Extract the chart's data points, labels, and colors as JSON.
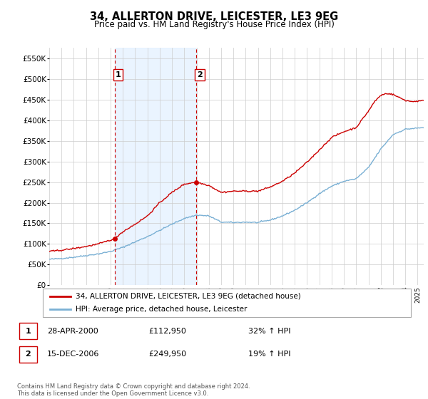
{
  "title": "34, ALLERTON DRIVE, LEICESTER, LE3 9EG",
  "subtitle": "Price paid vs. HM Land Registry's House Price Index (HPI)",
  "hpi_color": "#7ab0d4",
  "price_color": "#cc0000",
  "annotation_color": "#cc0000",
  "vline_color": "#cc0000",
  "bg_shading_color": "#ddeeff",
  "grid_color": "#cccccc",
  "ylim": [
    0,
    575000
  ],
  "yticks": [
    0,
    50000,
    100000,
    150000,
    200000,
    250000,
    300000,
    350000,
    400000,
    450000,
    500000,
    550000
  ],
  "ytick_labels": [
    "£0",
    "£50K",
    "£100K",
    "£150K",
    "£200K",
    "£250K",
    "£300K",
    "£350K",
    "£400K",
    "£450K",
    "£500K",
    "£550K"
  ],
  "sale1_date": 2000.32,
  "sale1_price": 112950,
  "sale1_label": "1",
  "sale2_date": 2006.96,
  "sale2_price": 249950,
  "sale2_label": "2",
  "legend_entry1": "34, ALLERTON DRIVE, LEICESTER, LE3 9EG (detached house)",
  "legend_entry2": "HPI: Average price, detached house, Leicester",
  "annotation1_date": "28-APR-2000",
  "annotation1_price": "£112,950",
  "annotation1_hpi": "32% ↑ HPI",
  "annotation2_date": "15-DEC-2006",
  "annotation2_price": "£249,950",
  "annotation2_hpi": "19% ↑ HPI",
  "footer": "Contains HM Land Registry data © Crown copyright and database right 2024.\nThis data is licensed under the Open Government Licence v3.0.",
  "xmin": 1995,
  "xmax": 2025.5
}
